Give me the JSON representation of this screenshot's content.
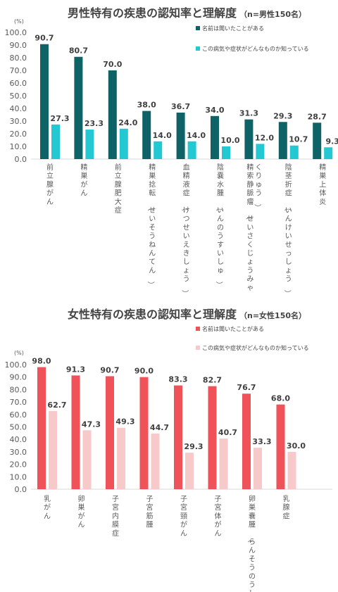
{
  "chart_data": [
    {
      "type": "bar",
      "title": "男性特有の疾患の認知率と理解度",
      "subtitle": "（n=男性150名）",
      "unit": "(%)",
      "ylim": [
        0,
        100
      ],
      "yticks": [
        "0.0",
        "10.0",
        "20.0",
        "30.0",
        "40.0",
        "50.0",
        "60.0",
        "70.0",
        "80.0",
        "90.0",
        "100.0"
      ],
      "categories": [
        "前立腺がん",
        "精巣がん",
        "前立腺肥大症",
        "精巣捻転（せいそうねんてん）",
        "血精液症（けつせいえきしょう）",
        "陰嚢水腫（いんのうすいしゅ）",
        "精索静脈瘤（せいさくじょうみゃくりゅう）",
        "陰茎折症（いんけいせっしょう）",
        "精巣上体炎"
      ],
      "series": [
        {
          "name": "名前は聞いたことがある",
          "color": "#0f6367",
          "values": [
            90.7,
            80.7,
            70.0,
            38.0,
            36.7,
            34.0,
            31.3,
            29.3,
            28.7
          ],
          "labels": [
            "90.7",
            "80.7",
            "70.0",
            "38.0",
            "36.7",
            "34.0",
            "31.3",
            "29.3",
            "28.7"
          ]
        },
        {
          "name": "この病気や症状がどんなものか知っている",
          "color": "#24c8d3",
          "values": [
            27.3,
            23.3,
            24.0,
            14.0,
            14.0,
            10.0,
            12.0,
            10.7,
            9.3
          ],
          "labels": [
            "27.3",
            "23.3",
            "24.0",
            "14.0",
            "14.0",
            "10.0",
            "12.0",
            "10.7",
            "9.3"
          ]
        }
      ],
      "grid": false,
      "legend": "top-right"
    },
    {
      "type": "bar",
      "title": "女性特有の疾患の認知率と理解度",
      "subtitle": "（n=女性150名）",
      "unit": "(%)",
      "ylim": [
        0,
        100
      ],
      "yticks": [
        "0.0",
        "10.0",
        "20.0",
        "30.0",
        "40.0",
        "50.0",
        "60.0",
        "70.0",
        "80.0",
        "90.0",
        "100.0"
      ],
      "categories": [
        "乳がん",
        "卵巣がん",
        "子宮内膜症",
        "子宮筋腫",
        "子宮頸がん",
        "子宮体がん",
        "卵巣嚢腫（らんそうのうしゅ）",
        "乳腺症"
      ],
      "series": [
        {
          "name": "名前は聞いたことがある",
          "color": "#f0525a",
          "values": [
            98.0,
            91.3,
            90.7,
            90.0,
            83.3,
            82.7,
            76.7,
            68.0
          ],
          "labels": [
            "98.0",
            "91.3",
            "90.7",
            "90.0",
            "83.3",
            "82.7",
            "76.7",
            "68.0"
          ]
        },
        {
          "name": "この病気や症状がどんなものか知っている",
          "color": "#f8c9cb",
          "values": [
            62.7,
            47.3,
            49.3,
            44.7,
            29.3,
            40.7,
            33.3,
            30.0
          ],
          "labels": [
            "62.7",
            "47.3",
            "49.3",
            "44.7",
            "29.3",
            "40.7",
            "33.3",
            "30.0"
          ]
        }
      ],
      "grid": false,
      "legend": "top-right"
    }
  ]
}
